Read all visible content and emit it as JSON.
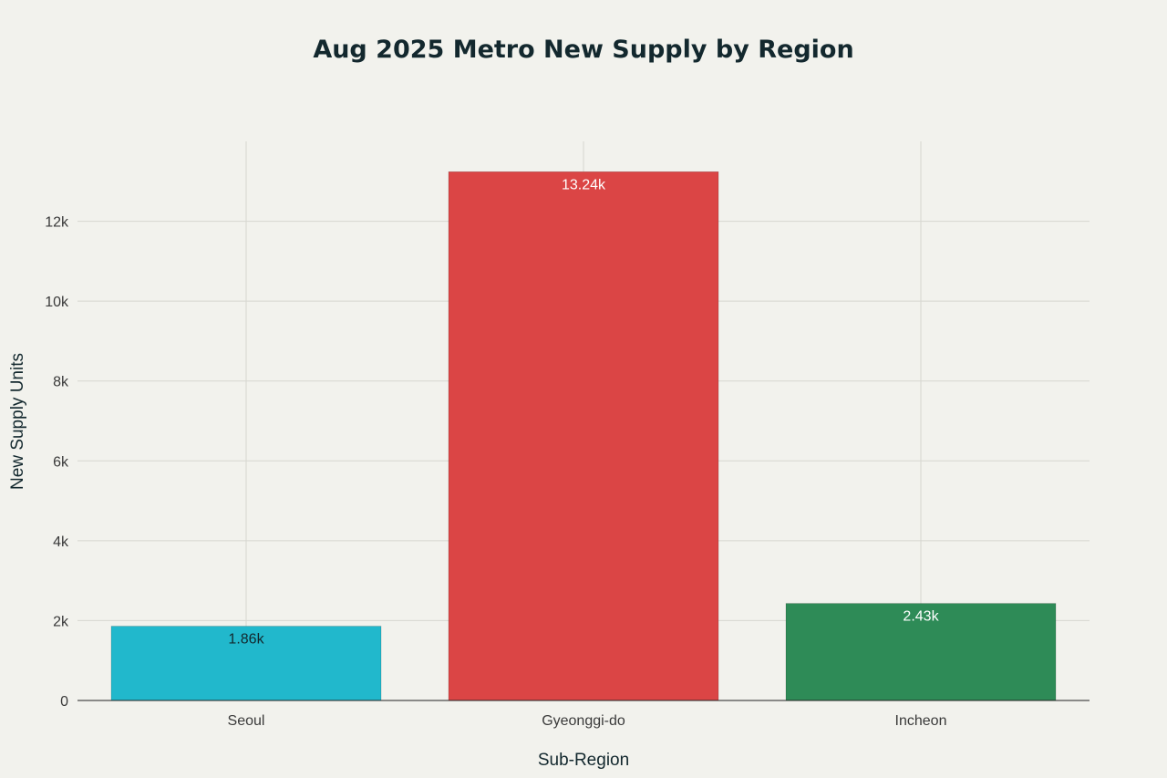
{
  "chart_data": {
    "type": "bar",
    "title": "Aug 2025 Metro New Supply by Region",
    "xlabel": "Sub-Region",
    "ylabel": "New Supply Units",
    "categories": [
      "Seoul",
      "Gyeonggi-do",
      "Incheon"
    ],
    "values": [
      1860,
      13240,
      2430
    ],
    "data_labels": [
      "1.86k",
      "13.24k",
      "2.43k"
    ],
    "colors": [
      "#21b8cc",
      "#db4545",
      "#2e8b57"
    ],
    "data_label_colors": [
      "#13282e",
      "#ffffff",
      "#ffffff"
    ],
    "ylim": [
      0,
      14000
    ],
    "yticks": [
      0,
      2000,
      4000,
      6000,
      8000,
      10000,
      12000
    ],
    "ytick_labels": [
      "0",
      "2k",
      "4k",
      "6k",
      "8k",
      "10k",
      "12k"
    ],
    "grid": true,
    "legend": "none"
  }
}
